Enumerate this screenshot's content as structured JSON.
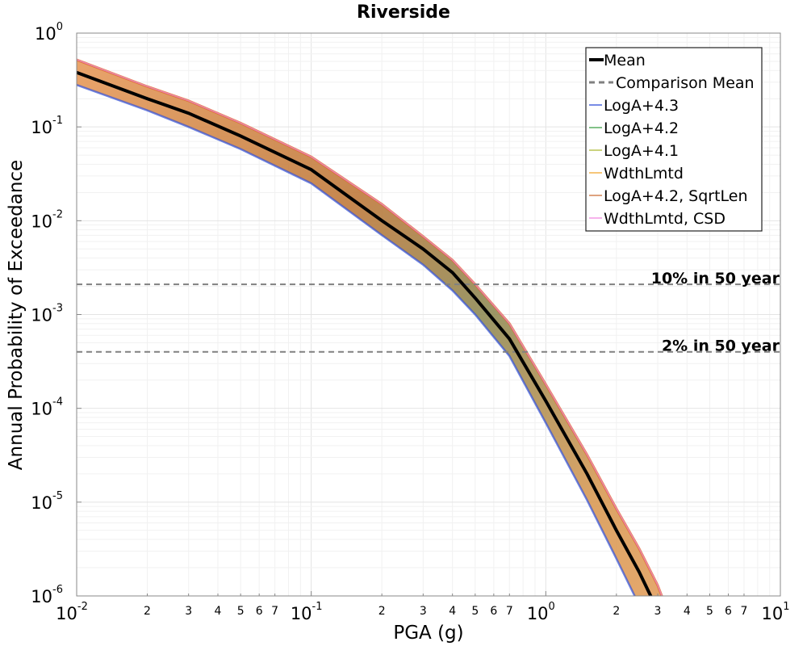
{
  "chart_data": {
    "type": "line",
    "title": "Riverside",
    "xlabel": "PGA (g)",
    "ylabel": "Annual Probability of Exceedance",
    "x_scale": "log",
    "y_scale": "log",
    "xlim": [
      0.01,
      10
    ],
    "ylim": [
      1e-06,
      1
    ],
    "grid": true,
    "legend_position": "top-right",
    "x_ticks": [
      {
        "base": "10",
        "exp": "-2"
      },
      {
        "base": "10",
        "exp": "-1"
      },
      {
        "base": "10",
        "exp": "0"
      },
      {
        "base": "10",
        "exp": "1"
      }
    ],
    "x_minor_tick_labels": [
      "2",
      "3",
      "4",
      "5",
      "6",
      "7"
    ],
    "y_ticks": [
      {
        "base": "10",
        "exp": "0"
      },
      {
        "base": "10",
        "exp": "-1"
      },
      {
        "base": "10",
        "exp": "-2"
      },
      {
        "base": "10",
        "exp": "-3"
      },
      {
        "base": "10",
        "exp": "-4"
      },
      {
        "base": "10",
        "exp": "-5"
      },
      {
        "base": "10",
        "exp": "-6"
      }
    ],
    "mean": {
      "name": "Mean",
      "color": "#000000",
      "x": [
        0.01,
        0.02,
        0.03,
        0.05,
        0.1,
        0.2,
        0.3,
        0.4,
        0.5,
        0.7,
        1.0,
        1.5,
        2.0,
        2.5,
        3.0
      ],
      "y": [
        0.38,
        0.2,
        0.14,
        0.08,
        0.035,
        0.01,
        0.005,
        0.0028,
        0.0015,
        0.00055,
        0.00012,
        2e-05,
        5e-06,
        1.8e-06,
        7e-07
      ]
    },
    "series": [
      {
        "name": "Comparison Mean",
        "color": "#808080",
        "style": "dashed"
      },
      {
        "name": "LogA+4.3",
        "color": "#1f3fd6"
      },
      {
        "name": "LogA+4.2",
        "color": "#2e9a3b"
      },
      {
        "name": "LogA+4.1",
        "color": "#a8b62a"
      },
      {
        "name": "WdthLmtd",
        "color": "#f0a020"
      },
      {
        "name": "LogA+4.2, SqrtLen",
        "color": "#c8642a"
      },
      {
        "name": "WdthLmtd, CSD",
        "color": "#f080e0"
      }
    ],
    "band": {
      "x": [
        0.01,
        0.02,
        0.03,
        0.05,
        0.1,
        0.2,
        0.3,
        0.4,
        0.5,
        0.7,
        1.0,
        1.5,
        2.0,
        2.5,
        3.0,
        3.3
      ],
      "lower": [
        0.28,
        0.15,
        0.1,
        0.058,
        0.025,
        0.007,
        0.0034,
        0.0018,
        0.001,
        0.00036,
        7e-05,
        1.05e-05,
        2.5e-06,
        8e-07,
        3e-07,
        1.5e-07
      ],
      "upper": [
        0.52,
        0.27,
        0.19,
        0.11,
        0.048,
        0.015,
        0.0068,
        0.0038,
        0.0021,
        0.0008,
        0.00018,
        3.2e-05,
        8.5e-06,
        3.2e-06,
        1.3e-06,
        7e-07
      ]
    },
    "hlines": [
      {
        "label": "10% in 50 year",
        "y": 0.0021,
        "color": "#808080"
      },
      {
        "label": "2% in 50 year",
        "y": 0.0004,
        "color": "#808080"
      }
    ]
  }
}
